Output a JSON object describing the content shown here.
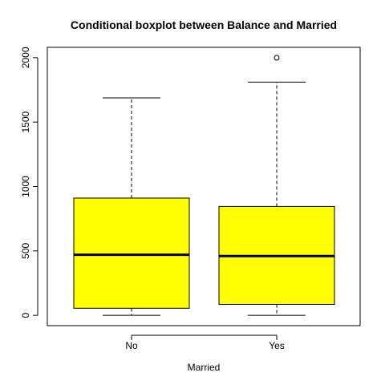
{
  "chart_data": {
    "type": "boxplot",
    "title": "Conditional boxplot between Balance and Married",
    "xlabel": "Married",
    "ylabel": "",
    "categories": [
      "No",
      "Yes"
    ],
    "boxes": [
      {
        "category": "No",
        "min": 0,
        "q1": 55,
        "median": 470,
        "q3": 910,
        "max": 1688,
        "outliers": []
      },
      {
        "category": "Yes",
        "min": 0,
        "q1": 85,
        "median": 460,
        "q3": 845,
        "max": 1810,
        "outliers": [
          1999
        ]
      }
    ],
    "ylim": [
      -80,
      2080
    ],
    "yticks": [
      0,
      500,
      1000,
      1500,
      2000
    ],
    "box_fill": "#ffff00",
    "median_color": "#000000",
    "grid": false
  }
}
